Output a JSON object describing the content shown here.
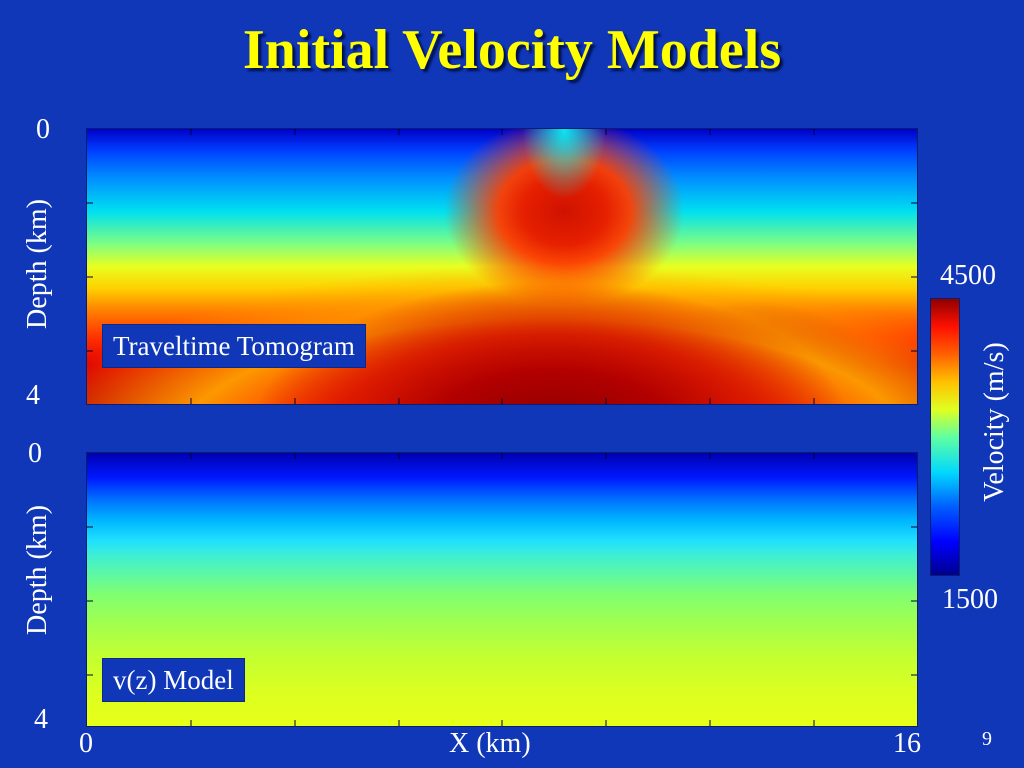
{
  "slide": {
    "title": "Initial Velocity Models",
    "page_number": "9"
  },
  "panels": {
    "top": {
      "label": "Traveltime Tomogram",
      "ylabel": "Depth (km)",
      "ytick_top": "0",
      "ytick_bottom": "4"
    },
    "bottom": {
      "label": "v(z) Model",
      "ylabel": "Depth (km)",
      "ytick_top": "0",
      "ytick_bottom": "4"
    }
  },
  "xaxis": {
    "label": "X (km)",
    "tick_min": "0",
    "tick_max": "16"
  },
  "colorbar": {
    "title": "Velocity (m/s)",
    "max": "4500",
    "min": "1500"
  },
  "colors": {
    "background": "#0f37b8",
    "title": "#ffff00",
    "text": "#ffffff"
  }
}
